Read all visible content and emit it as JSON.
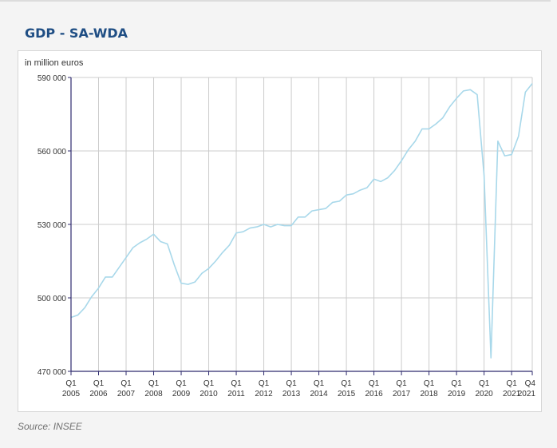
{
  "page": {
    "title": "GDP - SA-WDA",
    "source": "Source: INSEE"
  },
  "colors": {
    "title": "#1f4e84",
    "line": "#a8d8ea",
    "grid": "#cccccc",
    "axis": "#2e2a6e"
  },
  "chart_data": {
    "type": "line",
    "title": "GDP - SA-WDA",
    "ylabel": "in million euros",
    "xlabel": "",
    "ylim": [
      470000,
      590000
    ],
    "yticks": [
      470000,
      500000,
      530000,
      560000,
      590000
    ],
    "ytick_labels": [
      "470 000",
      "500 000",
      "530 000",
      "560 000",
      "590 000"
    ],
    "xticks": [
      {
        "index": 0,
        "q": "Q1",
        "year": "2005"
      },
      {
        "index": 4,
        "q": "Q1",
        "year": "2006"
      },
      {
        "index": 8,
        "q": "Q1",
        "year": "2007"
      },
      {
        "index": 12,
        "q": "Q1",
        "year": "2008"
      },
      {
        "index": 16,
        "q": "Q1",
        "year": "2009"
      },
      {
        "index": 20,
        "q": "Q1",
        "year": "2010"
      },
      {
        "index": 24,
        "q": "Q1",
        "year": "2011"
      },
      {
        "index": 28,
        "q": "Q1",
        "year": "2012"
      },
      {
        "index": 32,
        "q": "Q1",
        "year": "2013"
      },
      {
        "index": 36,
        "q": "Q1",
        "year": "2014"
      },
      {
        "index": 40,
        "q": "Q1",
        "year": "2015"
      },
      {
        "index": 44,
        "q": "Q1",
        "year": "2016"
      },
      {
        "index": 48,
        "q": "Q1",
        "year": "2017"
      },
      {
        "index": 52,
        "q": "Q1",
        "year": "2018"
      },
      {
        "index": 56,
        "q": "Q1",
        "year": "2019"
      },
      {
        "index": 60,
        "q": "Q1",
        "year": "2020"
      },
      {
        "index": 64,
        "q": "Q1",
        "year": "2021"
      },
      {
        "index": 67,
        "q": "Q4",
        "year": "2021"
      }
    ],
    "grid": true,
    "series": [
      {
        "name": "GDP",
        "values": [
          492000,
          493000,
          496000,
          500500,
          504000,
          508500,
          508500,
          512500,
          516500,
          520500,
          522500,
          524000,
          526000,
          523000,
          522000,
          513500,
          506000,
          505500,
          506500,
          510000,
          512000,
          515000,
          518500,
          521500,
          526500,
          527000,
          528500,
          529000,
          530000,
          529000,
          530000,
          529500,
          529500,
          533000,
          533000,
          535500,
          536000,
          536500,
          539000,
          539500,
          542000,
          542500,
          544000,
          545000,
          548500,
          547500,
          549000,
          552000,
          556000,
          560500,
          564000,
          569000,
          569000,
          571000,
          573500,
          578000,
          581500,
          584500,
          585000,
          583000,
          550000,
          475500,
          564000,
          558000,
          558500,
          566000,
          584000,
          587500
        ]
      }
    ]
  }
}
